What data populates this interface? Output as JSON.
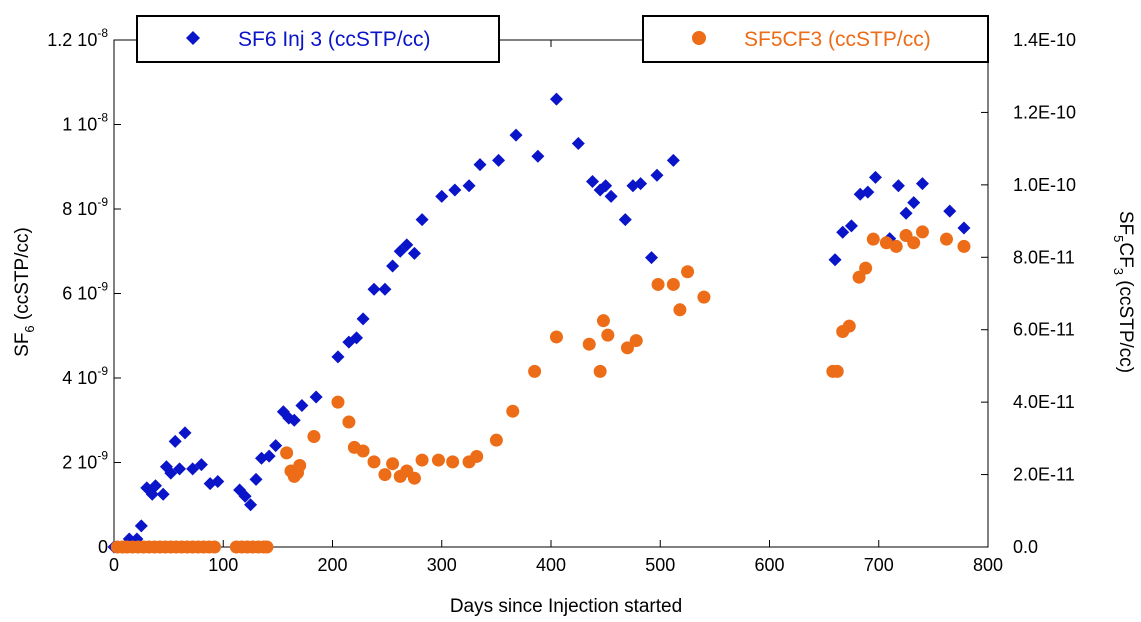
{
  "chart_data": {
    "type": "scatter",
    "xlabel": "Days since Injection started",
    "ylabel_left": {
      "main": "SF",
      "sub": "6",
      "rest": "(ccSTP/cc)"
    },
    "ylabel_right": {
      "main": "SF",
      "sub1": "5",
      "mid": "CF",
      "sub2": "3",
      "rest": "(ccSTP/cc)"
    },
    "xlim": [
      0,
      800
    ],
    "ylim_left": [
      0,
      1.2e-08
    ],
    "ylim_right": [
      0,
      1.4e-10
    ],
    "x_ticks": [
      {
        "value": 0,
        "label": "0"
      },
      {
        "value": 100,
        "label": "100"
      },
      {
        "value": 200,
        "label": "200"
      },
      {
        "value": 300,
        "label": "300"
      },
      {
        "value": 400,
        "label": "400"
      },
      {
        "value": 500,
        "label": "500"
      },
      {
        "value": 600,
        "label": "600"
      },
      {
        "value": 700,
        "label": "700"
      },
      {
        "value": 800,
        "label": "800"
      }
    ],
    "y_left_ticks": [
      {
        "value": 0,
        "mant": "0",
        "exp": ""
      },
      {
        "value": 2e-09,
        "mant": "2 10",
        "exp": "-9"
      },
      {
        "value": 4e-09,
        "mant": "4 10",
        "exp": "-9"
      },
      {
        "value": 6e-09,
        "mant": "6 10",
        "exp": "-9"
      },
      {
        "value": 8e-09,
        "mant": "8 10",
        "exp": "-9"
      },
      {
        "value": 1e-08,
        "mant": "1 10",
        "exp": "-8"
      },
      {
        "value": 1.2e-08,
        "mant": "1.2 10",
        "exp": "-8"
      }
    ],
    "y_right_ticks": [
      {
        "value": 0,
        "label": "0.0"
      },
      {
        "value": 2e-11,
        "label": "2.0E-11"
      },
      {
        "value": 4e-11,
        "label": "4.0E-11"
      },
      {
        "value": 6e-11,
        "label": "6.0E-11"
      },
      {
        "value": 8e-11,
        "label": "8.0E-11"
      },
      {
        "value": 1e-10,
        "label": "1.0E-10"
      },
      {
        "value": 1.2e-10,
        "label": "1.2E-10"
      },
      {
        "value": 1.4e-10,
        "label": "1.4E-10"
      }
    ],
    "grid": false,
    "series": [
      {
        "name": "SF6 Inj 3 (ccSTP/cc)",
        "axis": "left",
        "marker": "diamond",
        "color": "#0a14c8",
        "legend_position": "top-left",
        "points": [
          [
            0,
            0
          ],
          [
            7,
            0
          ],
          [
            14,
            1.9e-10
          ],
          [
            21,
            1.9e-10
          ],
          [
            25,
            5e-10
          ],
          [
            30,
            1.4e-09
          ],
          [
            35,
            1.25e-09
          ],
          [
            38,
            1.45e-09
          ],
          [
            45,
            1.25e-09
          ],
          [
            48,
            1.9e-09
          ],
          [
            52,
            1.75e-09
          ],
          [
            56,
            2.5e-09
          ],
          [
            60,
            1.85e-09
          ],
          [
            65,
            2.7e-09
          ],
          [
            72,
            1.85e-09
          ],
          [
            80,
            1.95e-09
          ],
          [
            88,
            1.5e-09
          ],
          [
            95,
            1.55e-09
          ],
          [
            115,
            1.35e-09
          ],
          [
            120,
            1.2e-09
          ],
          [
            125,
            1e-09
          ],
          [
            130,
            1.6e-09
          ],
          [
            135,
            2.1e-09
          ],
          [
            142,
            2.15e-09
          ],
          [
            148,
            2.4e-09
          ],
          [
            155,
            3.2e-09
          ],
          [
            160,
            3.05e-09
          ],
          [
            165,
            3e-09
          ],
          [
            172,
            3.35e-09
          ],
          [
            185,
            3.55e-09
          ],
          [
            205,
            4.5e-09
          ],
          [
            215,
            4.85e-09
          ],
          [
            222,
            4.95e-09
          ],
          [
            228,
            5.4e-09
          ],
          [
            238,
            6.1e-09
          ],
          [
            248,
            6.1e-09
          ],
          [
            255,
            6.65e-09
          ],
          [
            262,
            7e-09
          ],
          [
            268,
            7.15e-09
          ],
          [
            275,
            6.95e-09
          ],
          [
            282,
            7.75e-09
          ],
          [
            300,
            8.3e-09
          ],
          [
            312,
            8.45e-09
          ],
          [
            325,
            8.55e-09
          ],
          [
            335,
            9.05e-09
          ],
          [
            352,
            9.15e-09
          ],
          [
            368,
            9.75e-09
          ],
          [
            388,
            9.25e-09
          ],
          [
            405,
            1.06e-08
          ],
          [
            425,
            9.55e-09
          ],
          [
            438,
            8.65e-09
          ],
          [
            445,
            8.45e-09
          ],
          [
            450,
            8.55e-09
          ],
          [
            455,
            8.3e-09
          ],
          [
            468,
            7.75e-09
          ],
          [
            475,
            8.55e-09
          ],
          [
            482,
            8.6e-09
          ],
          [
            492,
            6.85e-09
          ],
          [
            497,
            8.8e-09
          ],
          [
            512,
            9.15e-09
          ],
          [
            660,
            6.8e-09
          ],
          [
            667,
            7.45e-09
          ],
          [
            675,
            7.6e-09
          ],
          [
            683,
            8.35e-09
          ],
          [
            690,
            8.4e-09
          ],
          [
            697,
            8.75e-09
          ],
          [
            710,
            7.3e-09
          ],
          [
            718,
            8.55e-09
          ],
          [
            725,
            7.9e-09
          ],
          [
            732,
            8.15e-09
          ],
          [
            740,
            8.6e-09
          ],
          [
            765,
            7.95e-09
          ],
          [
            778,
            7.55e-09
          ]
        ]
      },
      {
        "name": "SF5CF3 (ccSTP/cc)",
        "axis": "right",
        "marker": "circle",
        "color": "#ed6c17",
        "legend_position": "top-right",
        "points": [
          [
            3,
            0
          ],
          [
            8,
            0
          ],
          [
            12,
            0
          ],
          [
            17,
            0
          ],
          [
            22,
            0
          ],
          [
            27,
            0
          ],
          [
            32,
            0
          ],
          [
            37,
            0
          ],
          [
            42,
            0
          ],
          [
            47,
            0
          ],
          [
            52,
            0
          ],
          [
            57,
            0
          ],
          [
            62,
            0
          ],
          [
            67,
            0
          ],
          [
            72,
            0
          ],
          [
            77,
            0
          ],
          [
            82,
            0
          ],
          [
            87,
            0
          ],
          [
            92,
            0
          ],
          [
            112,
            0
          ],
          [
            117,
            0
          ],
          [
            122,
            0
          ],
          [
            127,
            0
          ],
          [
            132,
            0
          ],
          [
            137,
            0
          ],
          [
            140,
            0
          ],
          [
            158,
            2.6e-11
          ],
          [
            162,
            2.1e-11
          ],
          [
            165,
            1.95e-11
          ],
          [
            168,
            2.05e-11
          ],
          [
            170,
            2.25e-11
          ],
          [
            183,
            3.05e-11
          ],
          [
            205,
            4e-11
          ],
          [
            215,
            3.45e-11
          ],
          [
            220,
            2.75e-11
          ],
          [
            228,
            2.65e-11
          ],
          [
            238,
            2.35e-11
          ],
          [
            248,
            2e-11
          ],
          [
            255,
            2.3e-11
          ],
          [
            262,
            1.95e-11
          ],
          [
            268,
            2.1e-11
          ],
          [
            275,
            1.9e-11
          ],
          [
            282,
            2.4e-11
          ],
          [
            297,
            2.4e-11
          ],
          [
            310,
            2.35e-11
          ],
          [
            325,
            2.35e-11
          ],
          [
            332,
            2.5e-11
          ],
          [
            350,
            2.95e-11
          ],
          [
            365,
            3.75e-11
          ],
          [
            385,
            4.85e-11
          ],
          [
            405,
            5.8e-11
          ],
          [
            435,
            5.6e-11
          ],
          [
            445,
            4.85e-11
          ],
          [
            448,
            6.25e-11
          ],
          [
            452,
            5.85e-11
          ],
          [
            470,
            5.5e-11
          ],
          [
            478,
            5.7e-11
          ],
          [
            498,
            7.25e-11
          ],
          [
            512,
            7.25e-11
          ],
          [
            518,
            6.55e-11
          ],
          [
            525,
            7.6e-11
          ],
          [
            540,
            6.9e-11
          ],
          [
            658,
            4.85e-11
          ],
          [
            662,
            4.85e-11
          ],
          [
            667,
            5.95e-11
          ],
          [
            673,
            6.1e-11
          ],
          [
            682,
            7.45e-11
          ],
          [
            688,
            7.7e-11
          ],
          [
            695,
            8.5e-11
          ],
          [
            707,
            8.4e-11
          ],
          [
            716,
            8.3e-11
          ],
          [
            725,
            8.6e-11
          ],
          [
            732,
            8.4e-11
          ],
          [
            740,
            8.7e-11
          ],
          [
            762,
            8.5e-11
          ],
          [
            778,
            8.3e-11
          ]
        ]
      }
    ]
  }
}
